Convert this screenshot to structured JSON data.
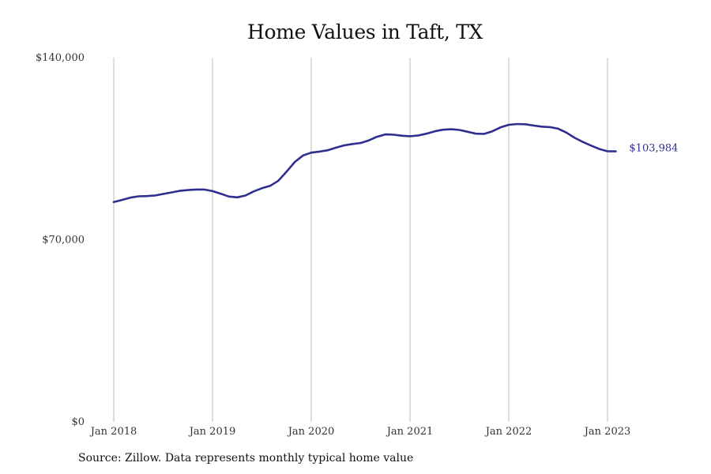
{
  "chart_data": {
    "type": "line",
    "title": "Home Values in Taft, TX",
    "xlabel": "",
    "ylabel": "",
    "x_tick_labels": [
      "Jan 2018",
      "Jan 2019",
      "Jan 2020",
      "Jan 2021",
      "Jan 2022",
      "Jan 2023"
    ],
    "y_tick_labels": [
      "$140,000",
      "$70,000",
      "$0"
    ],
    "y_ticks": [
      140000,
      70000,
      0
    ],
    "ylim": [
      0,
      140000
    ],
    "x_range": [
      "2018-01",
      "2023-02"
    ],
    "grid": "vertical",
    "legend": "none",
    "line_color": "#2e2e91",
    "end_label": "$103,984",
    "series": [
      {
        "x": [
          "2018-01",
          "2018-02",
          "2018-03",
          "2018-04",
          "2018-05",
          "2018-06",
          "2018-07",
          "2018-08",
          "2018-09",
          "2018-10",
          "2018-11",
          "2018-12",
          "2019-01",
          "2019-02",
          "2019-03",
          "2019-04",
          "2019-05",
          "2019-06",
          "2019-07",
          "2019-08",
          "2019-09",
          "2019-10",
          "2019-11",
          "2019-12",
          "2020-01",
          "2020-02",
          "2020-03",
          "2020-04",
          "2020-05",
          "2020-06",
          "2020-07",
          "2020-08",
          "2020-09",
          "2020-10",
          "2020-11",
          "2020-12",
          "2021-01",
          "2021-02",
          "2021-03",
          "2021-04",
          "2021-05",
          "2021-06",
          "2021-07",
          "2021-08",
          "2021-09",
          "2021-10",
          "2021-11",
          "2021-12",
          "2022-01",
          "2022-02",
          "2022-03",
          "2022-04",
          "2022-05",
          "2022-06",
          "2022-07",
          "2022-08",
          "2022-09",
          "2022-10",
          "2022-11",
          "2022-12",
          "2023-01",
          "2023-02"
        ],
        "values": [
          84500,
          85300,
          86200,
          86700,
          86800,
          87000,
          87600,
          88200,
          88800,
          89100,
          89300,
          89300,
          88700,
          87700,
          86600,
          86300,
          87000,
          88600,
          89800,
          90700,
          92700,
          96200,
          99900,
          102400,
          103500,
          103900,
          104400,
          105400,
          106300,
          106800,
          107200,
          108200,
          109600,
          110500,
          110400,
          110000,
          109800,
          110100,
          110800,
          111700,
          112300,
          112500,
          112200,
          111500,
          110800,
          110700,
          111700,
          113200,
          114200,
          114500,
          114400,
          113900,
          113500,
          113300,
          112700,
          111200,
          109200,
          107600,
          106200,
          104900,
          104000,
          103984
        ]
      }
    ]
  },
  "source": "Source: Zillow. Data represents monthly typical home value"
}
